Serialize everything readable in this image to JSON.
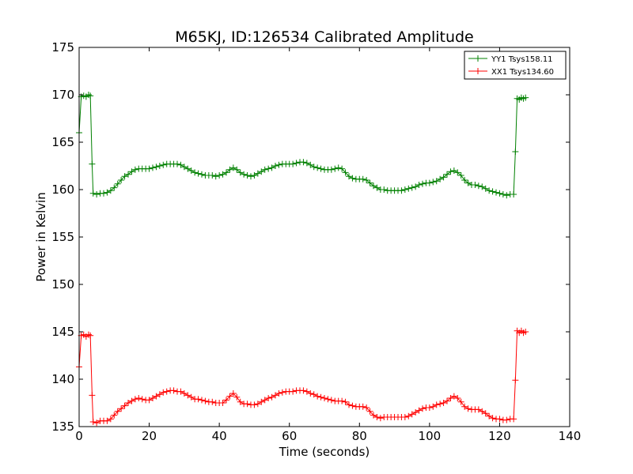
{
  "chart_data": {
    "type": "line",
    "title": "M65KJ, ID:126534 Calibrated Amplitude",
    "xlabel": "Time (seconds)",
    "ylabel": "Power in Kelvin",
    "xlim": [
      0,
      140
    ],
    "ylim": [
      135,
      175
    ],
    "xticks": [
      0,
      20,
      40,
      60,
      80,
      100,
      120,
      140
    ],
    "yticks": [
      135,
      140,
      145,
      150,
      155,
      160,
      165,
      170,
      175
    ],
    "grid": false,
    "legend_position": "top-right",
    "marker": "plus",
    "series": [
      {
        "name": "YY1 Tsys158.11",
        "color": "#008000",
        "points": [
          [
            0,
            166.0
          ],
          [
            0.6,
            169.8
          ],
          [
            1.3,
            169.9
          ],
          [
            2.0,
            169.8
          ],
          [
            2.7,
            170.0
          ],
          [
            3.2,
            169.9
          ],
          [
            3.7,
            162.7
          ],
          [
            4.0,
            159.6
          ],
          [
            5,
            159.5
          ],
          [
            6,
            159.6
          ],
          [
            7,
            159.6
          ],
          [
            8,
            159.7
          ],
          [
            9,
            159.9
          ],
          [
            10,
            160.2
          ],
          [
            11,
            160.6
          ],
          [
            12,
            161.0
          ],
          [
            13,
            161.4
          ],
          [
            14,
            161.6
          ],
          [
            15,
            161.9
          ],
          [
            16,
            162.1
          ],
          [
            17,
            162.2
          ],
          [
            18,
            162.2
          ],
          [
            19,
            162.2
          ],
          [
            20,
            162.2
          ],
          [
            21,
            162.3
          ],
          [
            22,
            162.4
          ],
          [
            23,
            162.5
          ],
          [
            24,
            162.6
          ],
          [
            25,
            162.7
          ],
          [
            26,
            162.7
          ],
          [
            27,
            162.7
          ],
          [
            28,
            162.7
          ],
          [
            29,
            162.6
          ],
          [
            30,
            162.4
          ],
          [
            31,
            162.2
          ],
          [
            32,
            162.0
          ],
          [
            33,
            161.8
          ],
          [
            34,
            161.7
          ],
          [
            35,
            161.6
          ],
          [
            36,
            161.5
          ],
          [
            37,
            161.5
          ],
          [
            38,
            161.5
          ],
          [
            39,
            161.4
          ],
          [
            40,
            161.5
          ],
          [
            41,
            161.6
          ],
          [
            42,
            161.8
          ],
          [
            43,
            162.1
          ],
          [
            44,
            162.3
          ],
          [
            45,
            162.1
          ],
          [
            46,
            161.8
          ],
          [
            47,
            161.6
          ],
          [
            48,
            161.5
          ],
          [
            49,
            161.4
          ],
          [
            50,
            161.5
          ],
          [
            51,
            161.7
          ],
          [
            52,
            161.9
          ],
          [
            53,
            162.1
          ],
          [
            54,
            162.2
          ],
          [
            55,
            162.3
          ],
          [
            56,
            162.5
          ],
          [
            57,
            162.6
          ],
          [
            58,
            162.7
          ],
          [
            59,
            162.7
          ],
          [
            60,
            162.7
          ],
          [
            61,
            162.7
          ],
          [
            62,
            162.8
          ],
          [
            63,
            162.9
          ],
          [
            64,
            162.9
          ],
          [
            65,
            162.8
          ],
          [
            66,
            162.6
          ],
          [
            67,
            162.4
          ],
          [
            68,
            162.3
          ],
          [
            69,
            162.2
          ],
          [
            70,
            162.1
          ],
          [
            71,
            162.1
          ],
          [
            72,
            162.1
          ],
          [
            73,
            162.2
          ],
          [
            74,
            162.3
          ],
          [
            75,
            162.2
          ],
          [
            76,
            161.8
          ],
          [
            77,
            161.4
          ],
          [
            78,
            161.2
          ],
          [
            79,
            161.1
          ],
          [
            80,
            161.1
          ],
          [
            81,
            161.1
          ],
          [
            82,
            161.0
          ],
          [
            83,
            160.7
          ],
          [
            84,
            160.4
          ],
          [
            85,
            160.2
          ],
          [
            86,
            160.0
          ],
          [
            87,
            160.0
          ],
          [
            88,
            159.9
          ],
          [
            89,
            159.9
          ],
          [
            90,
            159.9
          ],
          [
            91,
            159.9
          ],
          [
            92,
            159.9
          ],
          [
            93,
            160.0
          ],
          [
            94,
            160.1
          ],
          [
            95,
            160.2
          ],
          [
            96,
            160.3
          ],
          [
            97,
            160.5
          ],
          [
            98,
            160.6
          ],
          [
            99,
            160.7
          ],
          [
            100,
            160.7
          ],
          [
            101,
            160.8
          ],
          [
            102,
            160.9
          ],
          [
            103,
            161.1
          ],
          [
            104,
            161.3
          ],
          [
            105,
            161.6
          ],
          [
            106,
            161.9
          ],
          [
            107,
            162.0
          ],
          [
            108,
            161.8
          ],
          [
            109,
            161.5
          ],
          [
            110,
            161.0
          ],
          [
            111,
            160.7
          ],
          [
            112,
            160.5
          ],
          [
            113,
            160.5
          ],
          [
            114,
            160.4
          ],
          [
            115,
            160.3
          ],
          [
            116,
            160.1
          ],
          [
            117,
            159.9
          ],
          [
            118,
            159.8
          ],
          [
            119,
            159.7
          ],
          [
            120,
            159.6
          ],
          [
            121,
            159.5
          ],
          [
            122,
            159.4
          ],
          [
            123,
            159.5
          ],
          [
            124,
            159.5
          ],
          [
            124.5,
            164.0
          ],
          [
            125,
            169.6
          ],
          [
            125.6,
            169.5
          ],
          [
            126.2,
            169.7
          ],
          [
            126.8,
            169.6
          ],
          [
            127.4,
            169.7
          ]
        ]
      },
      {
        "name": "XX1 Tsys134.60",
        "color": "#ff0000",
        "points": [
          [
            0,
            141.3
          ],
          [
            0.6,
            144.6
          ],
          [
            1.3,
            144.7
          ],
          [
            2.0,
            144.5
          ],
          [
            2.7,
            144.7
          ],
          [
            3.2,
            144.6
          ],
          [
            3.7,
            138.3
          ],
          [
            4.0,
            135.5
          ],
          [
            5,
            135.4
          ],
          [
            6,
            135.6
          ],
          [
            7,
            135.6
          ],
          [
            8,
            135.6
          ],
          [
            9,
            135.8
          ],
          [
            10,
            136.2
          ],
          [
            11,
            136.6
          ],
          [
            12,
            136.9
          ],
          [
            13,
            137.2
          ],
          [
            14,
            137.5
          ],
          [
            15,
            137.7
          ],
          [
            16,
            137.9
          ],
          [
            17,
            138.0
          ],
          [
            18,
            137.9
          ],
          [
            19,
            137.8
          ],
          [
            20,
            137.8
          ],
          [
            21,
            138.0
          ],
          [
            22,
            138.2
          ],
          [
            23,
            138.4
          ],
          [
            24,
            138.6
          ],
          [
            25,
            138.7
          ],
          [
            26,
            138.8
          ],
          [
            27,
            138.8
          ],
          [
            28,
            138.7
          ],
          [
            29,
            138.7
          ],
          [
            30,
            138.5
          ],
          [
            31,
            138.3
          ],
          [
            32,
            138.1
          ],
          [
            33,
            137.9
          ],
          [
            34,
            137.9
          ],
          [
            35,
            137.8
          ],
          [
            36,
            137.7
          ],
          [
            37,
            137.6
          ],
          [
            38,
            137.6
          ],
          [
            39,
            137.5
          ],
          [
            40,
            137.5
          ],
          [
            41,
            137.5
          ],
          [
            42,
            137.8
          ],
          [
            43,
            138.2
          ],
          [
            44,
            138.5
          ],
          [
            45,
            138.1
          ],
          [
            46,
            137.6
          ],
          [
            47,
            137.4
          ],
          [
            48,
            137.4
          ],
          [
            49,
            137.3
          ],
          [
            50,
            137.3
          ],
          [
            51,
            137.4
          ],
          [
            52,
            137.6
          ],
          [
            53,
            137.8
          ],
          [
            54,
            138.0
          ],
          [
            55,
            138.1
          ],
          [
            56,
            138.3
          ],
          [
            57,
            138.5
          ],
          [
            58,
            138.6
          ],
          [
            59,
            138.7
          ],
          [
            60,
            138.7
          ],
          [
            61,
            138.7
          ],
          [
            62,
            138.8
          ],
          [
            63,
            138.8
          ],
          [
            64,
            138.8
          ],
          [
            65,
            138.7
          ],
          [
            66,
            138.5
          ],
          [
            67,
            138.4
          ],
          [
            68,
            138.2
          ],
          [
            69,
            138.1
          ],
          [
            70,
            138.0
          ],
          [
            71,
            137.9
          ],
          [
            72,
            137.8
          ],
          [
            73,
            137.7
          ],
          [
            74,
            137.7
          ],
          [
            75,
            137.7
          ],
          [
            76,
            137.6
          ],
          [
            77,
            137.3
          ],
          [
            78,
            137.2
          ],
          [
            79,
            137.1
          ],
          [
            80,
            137.1
          ],
          [
            81,
            137.1
          ],
          [
            82,
            137.0
          ],
          [
            83,
            136.6
          ],
          [
            84,
            136.2
          ],
          [
            85,
            136.0
          ],
          [
            86,
            135.9
          ],
          [
            87,
            136.0
          ],
          [
            88,
            136.0
          ],
          [
            89,
            136.0
          ],
          [
            90,
            136.0
          ],
          [
            91,
            136.0
          ],
          [
            92,
            136.0
          ],
          [
            93,
            136.0
          ],
          [
            94,
            136.1
          ],
          [
            95,
            136.3
          ],
          [
            96,
            136.5
          ],
          [
            97,
            136.7
          ],
          [
            98,
            136.9
          ],
          [
            99,
            137.0
          ],
          [
            100,
            137.0
          ],
          [
            101,
            137.1
          ],
          [
            102,
            137.3
          ],
          [
            103,
            137.4
          ],
          [
            104,
            137.5
          ],
          [
            105,
            137.7
          ],
          [
            106,
            138.0
          ],
          [
            107,
            138.2
          ],
          [
            108,
            138.0
          ],
          [
            109,
            137.6
          ],
          [
            110,
            137.1
          ],
          [
            111,
            136.9
          ],
          [
            112,
            136.8
          ],
          [
            113,
            136.8
          ],
          [
            114,
            136.8
          ],
          [
            115,
            136.6
          ],
          [
            116,
            136.4
          ],
          [
            117,
            136.1
          ],
          [
            118,
            135.9
          ],
          [
            119,
            135.8
          ],
          [
            120,
            135.8
          ],
          [
            121,
            135.7
          ],
          [
            122,
            135.7
          ],
          [
            123,
            135.8
          ],
          [
            124,
            135.8
          ],
          [
            124.5,
            139.9
          ],
          [
            125,
            145.1
          ],
          [
            125.6,
            144.9
          ],
          [
            126.2,
            145.1
          ],
          [
            126.8,
            144.9
          ],
          [
            127.4,
            145.0
          ]
        ]
      }
    ]
  }
}
